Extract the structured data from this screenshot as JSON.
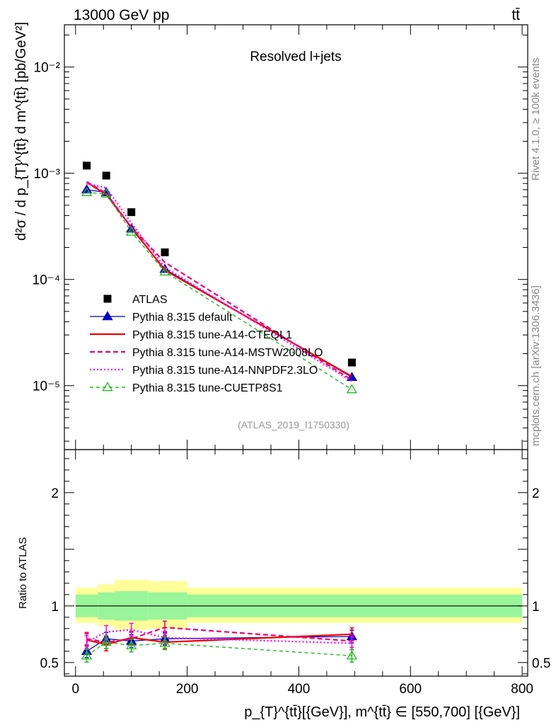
{
  "header": {
    "energy_label": "13000 GeV pp",
    "process_label": "tt̄",
    "side_label_top": "Rivet 4.1.0, ≥ 100k events",
    "side_label_bottom": "mcplots.cern.ch [arXiv:1306.3436]"
  },
  "chart_data": [
    {
      "type": "line",
      "panel": "main",
      "title": "Resolved l+jets",
      "analysis_tag": "(ATLAS_2019_I1750330)",
      "ylabel": "d²σ / d p_{T}^{tt̄} d m^{tt̄} [pb/GeV²]",
      "yscale": "log",
      "ylim": [
        2.5e-06,
        0.025
      ],
      "xlim": [
        -20,
        810
      ],
      "ytick_labels": [
        "10⁻⁵",
        "10⁻⁴",
        "10⁻³",
        "10⁻²"
      ],
      "legend_position": "middle-left",
      "series": [
        {
          "name": "ATLAS",
          "color": "#000000",
          "style": "square-marker",
          "x": [
            20,
            55,
            100,
            160,
            495
          ],
          "values": [
            0.00118,
            0.00095,
            0.00043,
            0.00018,
            1.65e-05
          ]
        },
        {
          "name": "Pythia 8.315 default",
          "color": "#0000cc",
          "style": "solid-triangle",
          "x": [
            20,
            55,
            100,
            160,
            495
          ],
          "values": [
            0.0007,
            0.00066,
            0.0003,
            0.000125,
            1.2e-05
          ]
        },
        {
          "name": "Pythia 8.315 tune-A14-CTEQL1",
          "color": "#ee0000",
          "style": "solid",
          "x": [
            20,
            55,
            100,
            160,
            495
          ],
          "values": [
            0.00082,
            0.00063,
            0.00031,
            0.000122,
            1.22e-05
          ]
        },
        {
          "name": "Pythia 8.315 tune-A14-MSTW2008LO",
          "color": "#ee0077",
          "style": "dashed",
          "x": [
            20,
            55,
            100,
            160,
            495
          ],
          "values": [
            0.00083,
            0.00065,
            0.00031,
            0.000145,
            1.13e-05
          ]
        },
        {
          "name": "Pythia 8.315 tune-A14-NNPDF2.3LO",
          "color": "#ff00ff",
          "style": "dotted",
          "x": [
            20,
            55,
            100,
            160,
            495
          ],
          "values": [
            0.0008,
            0.00073,
            0.00034,
            0.00013,
            1.1e-05
          ]
        },
        {
          "name": "Pythia 8.315 tune-CUETP8S1",
          "color": "#22bb22",
          "style": "dashed-open-triangle",
          "x": [
            20,
            55,
            100,
            160,
            495
          ],
          "values": [
            0.00066,
            0.00064,
            0.00028,
            0.000118,
            9.2e-06
          ]
        }
      ]
    },
    {
      "type": "line",
      "panel": "ratio",
      "ylabel": "Ratio to ATLAS",
      "ylim": [
        0.38,
        2.38
      ],
      "xlim": [
        -20,
        810
      ],
      "yticks": [
        0.5,
        1,
        2
      ],
      "ytick_labels": [
        "0.5",
        "1",
        "2"
      ],
      "xticks": [
        0,
        200,
        400,
        600,
        800
      ],
      "xtick_labels": [
        "0",
        "200",
        "400",
        "600",
        "800"
      ],
      "xlabel": "p_{T}^{tt̄}[{GeV}], m^{tt̄} ∈ [550,700] [{GeV}]",
      "uncertainty_bands": {
        "bin_edges": [
          0,
          40,
          70,
          130,
          200,
          800
        ],
        "inner_low": [
          0.9,
          0.88,
          0.87,
          0.88,
          0.9
        ],
        "inner_high": [
          1.1,
          1.12,
          1.13,
          1.12,
          1.1
        ],
        "outer_low": [
          0.85,
          0.82,
          0.79,
          0.8,
          0.85
        ],
        "outer_high": [
          1.16,
          1.19,
          1.23,
          1.22,
          1.16
        ],
        "inner_color": "#99f599",
        "outer_color": "#ffff99"
      },
      "series": [
        {
          "name": "Pythia 8.315 default",
          "color": "#0000cc",
          "x": [
            20,
            55,
            100,
            160,
            495
          ],
          "values": [
            0.6,
            0.71,
            0.69,
            0.71,
            0.73
          ]
        },
        {
          "name": "Pythia 8.315 tune-A14-CTEQL1",
          "color": "#ee0000",
          "x": [
            20,
            55,
            100,
            160,
            495
          ],
          "values": [
            0.7,
            0.66,
            0.72,
            0.68,
            0.75
          ]
        },
        {
          "name": "Pythia 8.315 tune-A14-MSTW2008LO",
          "color": "#ee0077",
          "x": [
            20,
            55,
            100,
            160,
            495
          ],
          "values": [
            0.71,
            0.68,
            0.71,
            0.81,
            0.69
          ]
        },
        {
          "name": "Pythia 8.315 tune-A14-NNPDF2.3LO",
          "color": "#ff00ff",
          "x": [
            20,
            55,
            100,
            160,
            495
          ],
          "values": [
            0.68,
            0.77,
            0.79,
            0.72,
            0.67
          ]
        },
        {
          "name": "Pythia 8.315 tune-CUETP8S1",
          "color": "#22bb22",
          "x": [
            20,
            55,
            100,
            160,
            495
          ],
          "values": [
            0.56,
            0.68,
            0.65,
            0.67,
            0.56
          ]
        }
      ]
    }
  ]
}
